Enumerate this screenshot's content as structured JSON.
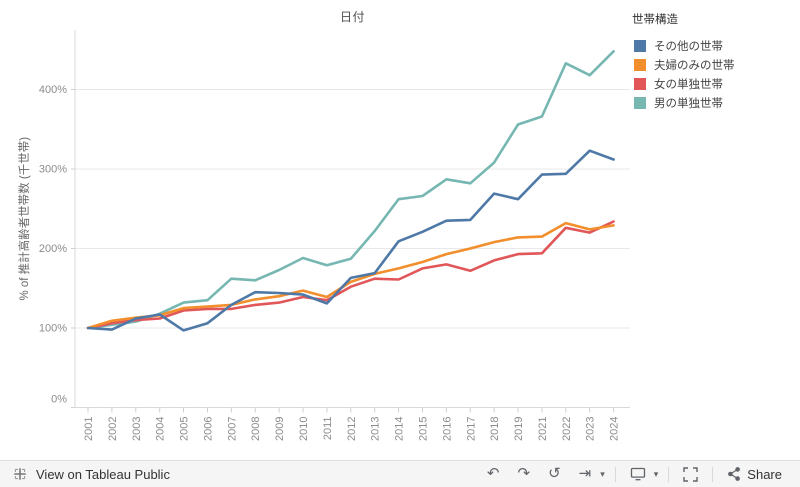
{
  "chart": {
    "title": "日付",
    "y_axis_title": "% of 推計高齢者世帯数 (千世帯)",
    "y_ticks": [
      {
        "value": 0,
        "label": "0%"
      },
      {
        "value": 100,
        "label": "100%"
      },
      {
        "value": 200,
        "label": "200%"
      },
      {
        "value": 300,
        "label": "300%"
      },
      {
        "value": 400,
        "label": "400%"
      }
    ]
  },
  "legend": {
    "title": "世帯構造",
    "items": [
      {
        "label": "その他の世帯",
        "color": "#4e79a7"
      },
      {
        "label": "夫婦のみの世帯",
        "color": "#f28e2b"
      },
      {
        "label": "女の単独世帯",
        "color": "#e15759"
      },
      {
        "label": "男の単独世帯",
        "color": "#76b7b2"
      }
    ]
  },
  "chart_data": {
    "type": "line",
    "title": "日付",
    "xlabel": "日付",
    "ylabel": "% of 推計高齢者世帯数 (千世帯)",
    "ylim": [
      0,
      470
    ],
    "grid": true,
    "legend_position": "right",
    "legend_title": "世帯構造",
    "categories": [
      "2001",
      "2002",
      "2003",
      "2004",
      "2005",
      "2006",
      "2007",
      "2008",
      "2009",
      "2010",
      "2011",
      "2012",
      "2013",
      "2014",
      "2015",
      "2016",
      "2017",
      "2018",
      "2019",
      "2021",
      "2022",
      "2023",
      "2024"
    ],
    "series": [
      {
        "name": "その他の世帯",
        "color": "#4e79a7",
        "values": [
          100,
          98,
          112,
          117,
          97,
          106,
          129,
          145,
          144,
          142,
          131,
          163,
          169,
          209,
          221,
          235,
          236,
          269,
          262,
          293,
          294,
          323,
          312
        ]
      },
      {
        "name": "夫婦のみの世帯",
        "color": "#f28e2b",
        "values": [
          100,
          109,
          113,
          116,
          125,
          127,
          129,
          136,
          140,
          147,
          139,
          158,
          168,
          175,
          183,
          193,
          200,
          208,
          214,
          215,
          232,
          224,
          229
        ]
      },
      {
        "name": "女の単独世帯",
        "color": "#e15759",
        "values": [
          100,
          106,
          110,
          112,
          122,
          124,
          124,
          129,
          132,
          139,
          135,
          152,
          162,
          161,
          175,
          180,
          172,
          185,
          193,
          194,
          226,
          220,
          234
        ]
      },
      {
        "name": "男の単独世帯",
        "color": "#76b7b2",
        "values": [
          100,
          104,
          108,
          118,
          132,
          135,
          162,
          160,
          173,
          188,
          179,
          187,
          222,
          262,
          266,
          287,
          282,
          308,
          356,
          366,
          433,
          418,
          448
        ]
      }
    ]
  },
  "toolbar": {
    "brand_text": "View on Tableau Public",
    "share_label": "Share",
    "icons": {
      "undo": "↶",
      "redo": "↷",
      "replay": "↺",
      "skip_forward": "⇥",
      "caret": "▾"
    }
  }
}
